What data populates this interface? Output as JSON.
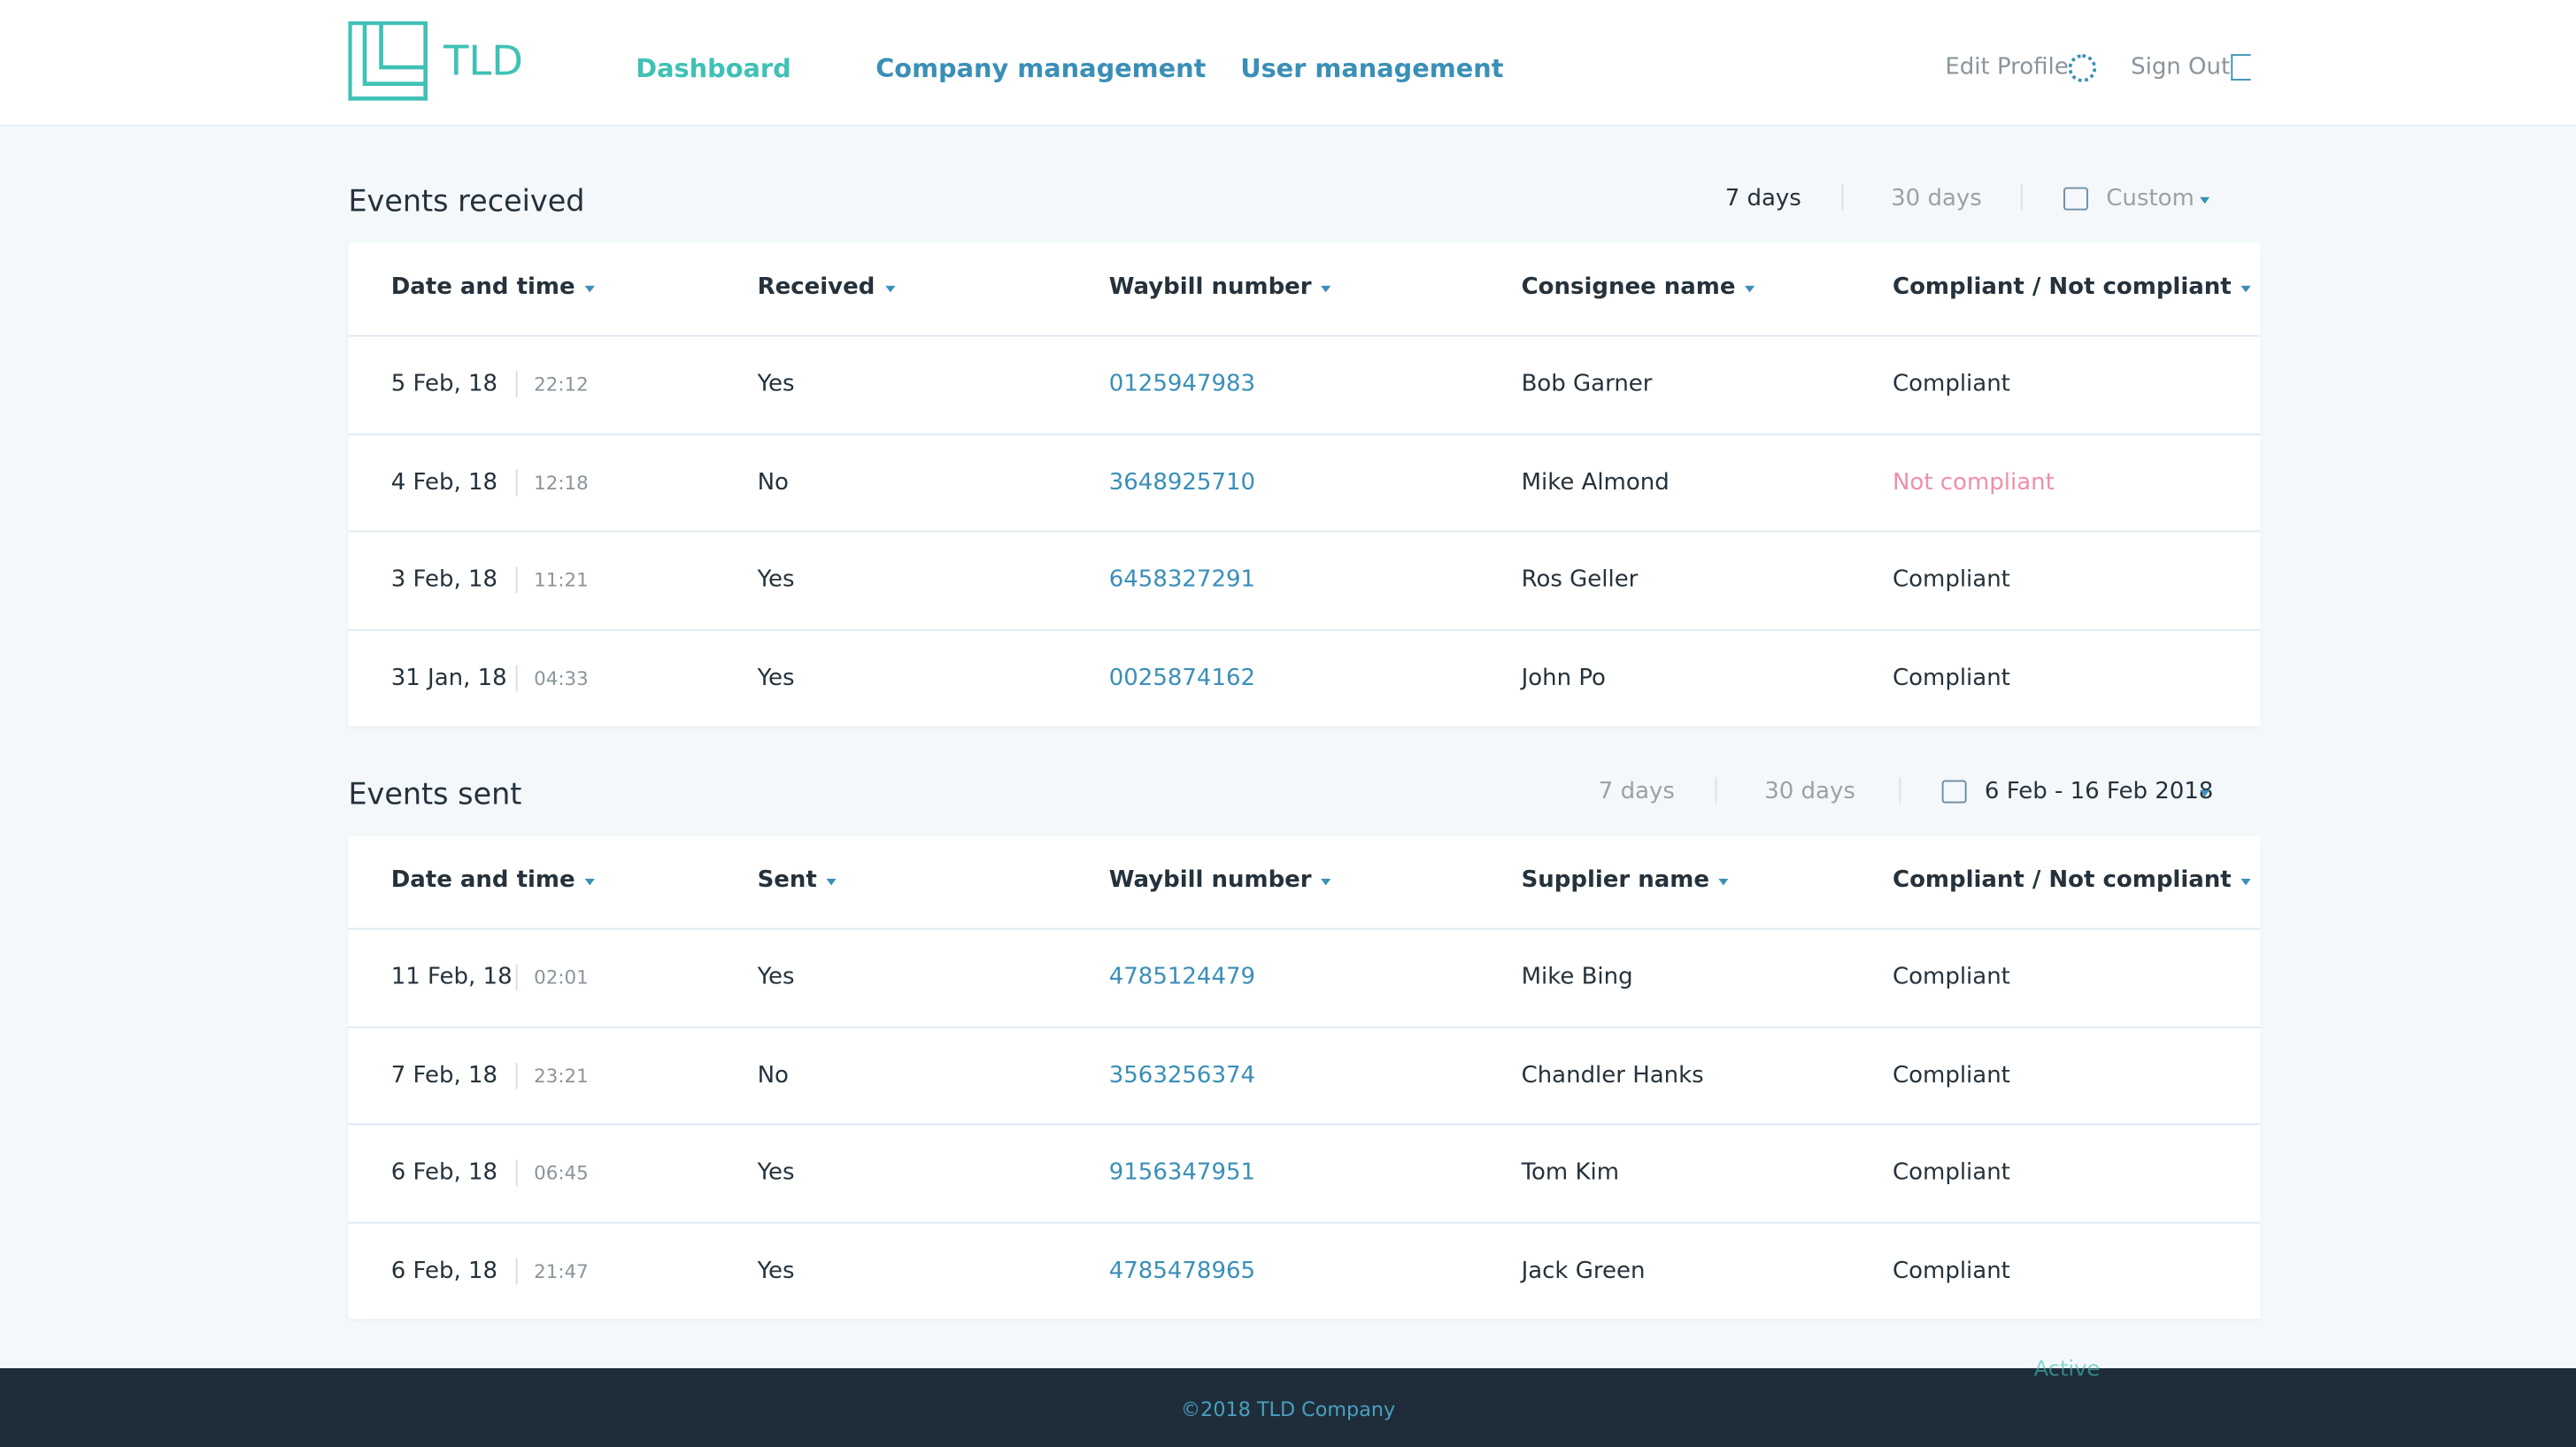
{
  "header": {
    "logo": "TLD",
    "nav": [
      "Dashboard",
      "Company management",
      "User management"
    ],
    "active_nav": 0,
    "actions": [
      "Edit Profile",
      "Sign Out"
    ]
  },
  "sections": [
    {
      "title": "Events received",
      "filters": [
        "7 days",
        "30 days",
        "Custom"
      ],
      "selected_filter": 0,
      "columns": [
        "Date and time",
        "Received",
        "Waybill number",
        "Consignee name",
        "Compliant / Not compliant"
      ],
      "rows": [
        [
          "5 Feb, 18",
          "22:12",
          "Yes",
          "0125947983",
          "Bob Garner",
          "Compliant"
        ],
        [
          "4 Feb, 18",
          "12:18",
          "No",
          "3648925710",
          "Mike Almond",
          "Not compliant"
        ],
        [
          "3 Feb, 18",
          "11:21",
          "Yes",
          "6458327291",
          "Ros Geller",
          "Compliant"
        ],
        [
          "31 Jan, 18",
          "04:33",
          "Yes",
          "0025874162",
          "John Po",
          "Compliant"
        ]
      ]
    },
    {
      "title": "Events sent",
      "filters": [
        "7 days",
        "30 days",
        "6 Feb - 16 Feb 2018"
      ],
      "selected_filter": 2,
      "columns": [
        "Date and time",
        "Sent",
        "Waybill number",
        "Supplier name",
        "Compliant / Not compliant"
      ],
      "rows": [
        [
          "11 Feb, 18",
          "02:01",
          "Yes",
          "4785124479",
          "Mike Bing",
          "Compliant"
        ],
        [
          "7 Feb, 18",
          "23:21",
          "No",
          "3563256374",
          "Chandler Hanks",
          "Compliant"
        ],
        [
          "6 Feb, 18",
          "06:45",
          "Yes",
          "9156347951",
          "Tom Kim",
          "Compliant"
        ],
        [
          "6 Feb, 18",
          "21:47",
          "Yes",
          "4785478965",
          "Jack Green",
          "Compliant"
        ]
      ]
    }
  ],
  "status_label": "Active",
  "footer": "©2018 TLD Company"
}
